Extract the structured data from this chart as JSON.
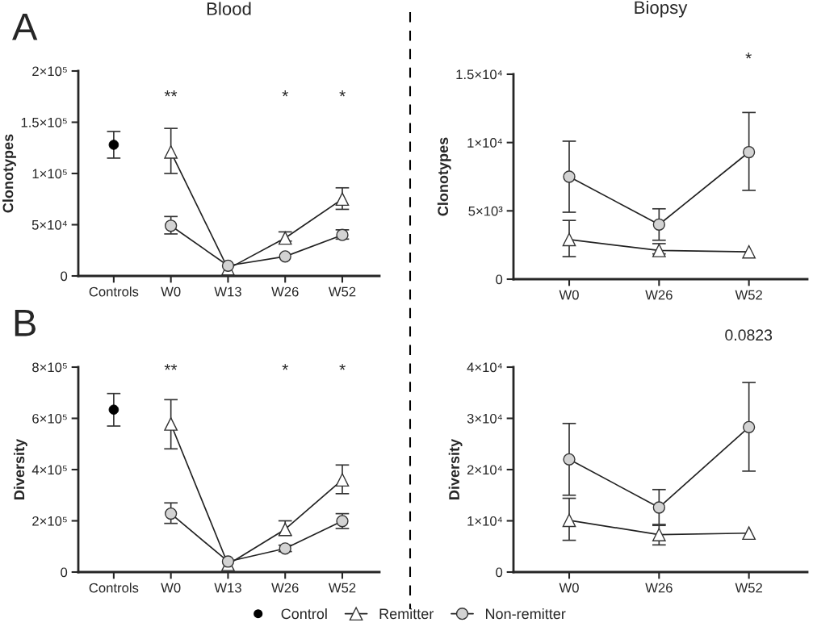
{
  "chart_data": [
    {
      "type": "line",
      "title": "Blood",
      "ylabel": "Clonotypes",
      "categories": [
        "Controls",
        "W0",
        "W13",
        "W26",
        "W52"
      ],
      "ylim": [
        0,
        200000
      ],
      "yticks": [
        0,
        {
          "value": 50000,
          "label": "5×10⁴"
        },
        {
          "value": 100000,
          "label": "1×10⁵"
        },
        {
          "value": 150000,
          "label": "1.5×10⁵"
        },
        {
          "value": 200000,
          "label": "2×10⁵"
        }
      ],
      "series": [
        {
          "name": "Control",
          "type": "scatter",
          "marker": "circle",
          "color": "#000000",
          "values": [
            128000,
            null,
            null,
            null,
            null
          ],
          "errors": [
            [
              115000,
              141000
            ],
            null,
            null,
            null,
            null
          ]
        },
        {
          "name": "Remitter",
          "marker": "triangle",
          "color": "#ffffff",
          "values": [
            null,
            121000,
            7000,
            37000,
            75000
          ],
          "errors": [
            null,
            [
              100000,
              144000
            ],
            null,
            [
              34000,
              43000
            ],
            [
              65000,
              86000
            ]
          ]
        },
        {
          "name": "Non-remitter",
          "marker": "circle",
          "color": "#d3d3d3",
          "values": [
            null,
            49000,
            10000,
            19000,
            40000
          ],
          "errors": [
            null,
            [
              41000,
              58000
            ],
            null,
            null,
            [
              36000,
              45000
            ]
          ]
        }
      ],
      "annotations": [
        "A",
        "**",
        "*",
        "*"
      ],
      "legend": "bottom",
      "grid": false
    },
    {
      "type": "line",
      "title": "Biopsy",
      "ylabel": "Clonotypes",
      "categories": [
        "W0",
        "W26",
        "W52"
      ],
      "ylim": [
        0,
        15000
      ],
      "yticks": [
        0,
        {
          "value": 5000,
          "label": "5×10³"
        },
        {
          "value": 10000,
          "label": "1×10⁴"
        },
        {
          "value": 15000,
          "label": "1.5×10⁴"
        }
      ],
      "series": [
        {
          "marker": "triangle",
          "color": "#ffffff",
          "values": [
            2900,
            2100,
            2000
          ],
          "errors": [
            [
              1650,
              4300
            ],
            [
              1850,
              2600
            ],
            null
          ]
        },
        {
          "marker": "circle",
          "color": "#d3d3d3",
          "values": [
            7500,
            4000,
            9300
          ],
          "errors": [
            [
              4900,
              10100
            ],
            [
              2850,
              5150
            ],
            [
              6500,
              12200
            ]
          ]
        }
      ],
      "annotations": [
        "*"
      ],
      "grid": false
    },
    {
      "type": "line",
      "ylabel": "Diversity",
      "categories": [
        "Controls",
        "W0",
        "W13",
        "W26",
        "W52"
      ],
      "ylim": [
        0,
        800000
      ],
      "yticks": [
        0,
        {
          "value": 200000,
          "label": "2×10⁵"
        },
        {
          "value": 400000,
          "label": "4×10⁵"
        },
        {
          "value": 600000,
          "label": "6×10⁵"
        },
        {
          "value": 800000,
          "label": "8×10⁵"
        }
      ],
      "series": [
        {
          "type": "scatter",
          "marker": "circle",
          "color": "#000000",
          "values": [
            634000,
            null,
            null,
            null,
            null
          ],
          "errors": [
            [
              570000,
              697000
            ],
            null,
            null,
            null,
            null
          ]
        },
        {
          "marker": "triangle",
          "color": "#ffffff",
          "values": [
            null,
            578000,
            30000,
            167000,
            360000
          ],
          "errors": [
            null,
            [
              481000,
              673000
            ],
            null,
            [
              143000,
              200000
            ],
            [
              306000,
              418000
            ]
          ]
        },
        {
          "marker": "circle",
          "color": "#d3d3d3",
          "values": [
            null,
            228000,
            41000,
            92000,
            199000
          ],
          "errors": [
            null,
            [
              190000,
              270000
            ],
            null,
            [
              80000,
              105000
            ],
            [
              170000,
              228000
            ]
          ]
        }
      ],
      "annotations": [
        "B",
        "**",
        "*",
        "*"
      ],
      "grid": false
    },
    {
      "type": "line",
      "ylabel": "Diversity",
      "categories": [
        "W0",
        "W26",
        "W52"
      ],
      "ylim": [
        0,
        40000
      ],
      "yticks": [
        0,
        {
          "value": 10000,
          "label": "1×10⁴"
        },
        {
          "value": 20000,
          "label": "2×10⁴"
        },
        {
          "value": 30000,
          "label": "3×10⁴"
        },
        {
          "value": 40000,
          "label": "4×10⁴"
        }
      ],
      "series": [
        {
          "marker": "triangle",
          "color": "#ffffff",
          "values": [
            10100,
            7300,
            7600
          ],
          "errors": [
            [
              6200,
              14400
            ],
            [
              5300,
              9100
            ],
            null
          ]
        },
        {
          "marker": "circle",
          "color": "#d3d3d3",
          "values": [
            22000,
            12600,
            28300
          ],
          "errors": [
            [
              15000,
              29000
            ],
            [
              9300,
              16100
            ],
            [
              19700,
              37000
            ]
          ]
        }
      ],
      "annotations": [
        "0.0823"
      ],
      "grid": false
    }
  ]
}
